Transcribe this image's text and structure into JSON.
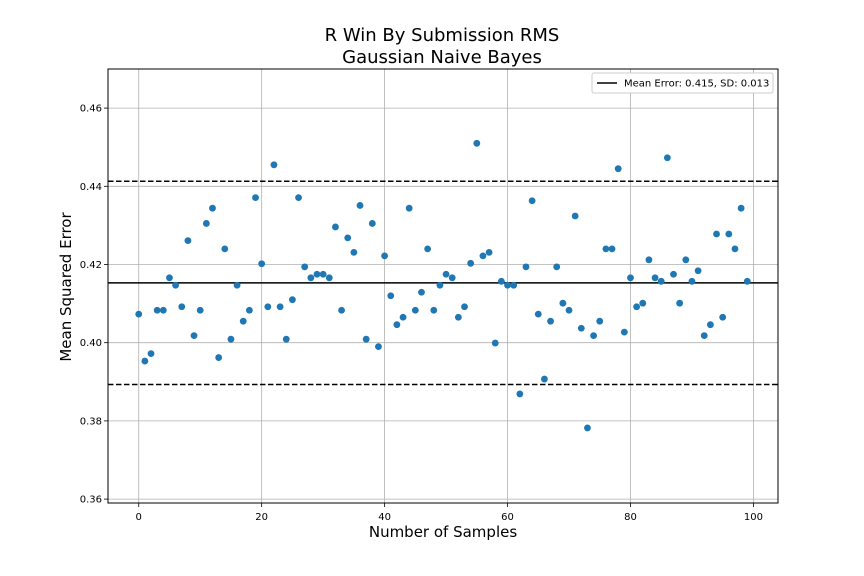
{
  "chart_data": {
    "type": "scatter",
    "title": [
      "R Win By Submission RMS",
      "Gaussian Naive Bayes"
    ],
    "xlabel": "Number of Samples",
    "ylabel": "Mean Squared Error",
    "xlim": [
      -5,
      104
    ],
    "ylim": [
      0.359,
      0.47
    ],
    "xticks": [
      0,
      20,
      40,
      60,
      80,
      100
    ],
    "yticks": [
      0.36,
      0.38,
      0.4,
      0.42,
      0.44,
      0.46
    ],
    "ytick_labels": [
      "0.36",
      "0.38",
      "0.40",
      "0.42",
      "0.44",
      "0.46"
    ],
    "grid": true,
    "legend": {
      "position": "top-right",
      "entries": [
        "Mean Error: 0.415, SD: 0.013"
      ]
    },
    "mean": 0.4153,
    "upper_band": 0.4413,
    "lower_band": 0.3893,
    "colors": {
      "points": "#1f77b4",
      "mean_line": "#000000",
      "band_line": "#000000",
      "grid": "#b0b0b0"
    },
    "x": [
      0,
      1,
      2,
      3,
      4,
      5,
      6,
      7,
      8,
      9,
      10,
      11,
      12,
      13,
      14,
      15,
      16,
      17,
      18,
      19,
      20,
      21,
      22,
      23,
      24,
      25,
      26,
      27,
      28,
      29,
      30,
      31,
      32,
      33,
      34,
      35,
      36,
      37,
      38,
      39,
      40,
      41,
      42,
      43,
      44,
      45,
      46,
      47,
      48,
      49,
      50,
      51,
      52,
      53,
      54,
      55,
      56,
      57,
      58,
      59,
      60,
      61,
      62,
      63,
      64,
      65,
      66,
      67,
      68,
      69,
      70,
      71,
      72,
      73,
      74,
      75,
      76,
      77,
      78,
      79,
      80,
      81,
      82,
      83,
      84,
      85,
      86,
      87,
      88,
      89,
      90,
      91,
      92,
      93,
      94,
      95,
      96,
      97,
      98,
      99
    ],
    "y": [
      0.4073,
      0.3953,
      0.3972,
      0.4083,
      0.4083,
      0.4166,
      0.4147,
      0.4092,
      0.4261,
      0.4018,
      0.4083,
      0.4305,
      0.4344,
      0.3962,
      0.424,
      0.4009,
      0.4147,
      0.4055,
      0.4083,
      0.4371,
      0.4202,
      0.4092,
      0.4455,
      0.4092,
      0.4009,
      0.411,
      0.4371,
      0.4194,
      0.4166,
      0.4175,
      0.4175,
      0.4166,
      0.4296,
      0.4083,
      0.4268,
      0.4231,
      0.4351,
      0.4009,
      0.4305,
      0.399,
      0.4222,
      0.412,
      0.4046,
      0.4065,
      0.4344,
      0.4083,
      0.4129,
      0.424,
      0.4083,
      0.4147,
      0.4175,
      0.4166,
      0.4065,
      0.4092,
      0.4203,
      0.451,
      0.4222,
      0.4231,
      0.3999,
      0.4157,
      0.4147,
      0.4147,
      0.3869,
      0.4194,
      0.4363,
      0.4073,
      0.3907,
      0.4055,
      0.4194,
      0.4101,
      0.4083,
      0.4324,
      0.4037,
      0.3782,
      0.4018,
      0.4055,
      0.424,
      0.424,
      0.4445,
      0.4027,
      0.4166,
      0.4092,
      0.4101,
      0.4212,
      0.4166,
      0.4157,
      0.4473,
      0.4175,
      0.4101,
      0.4212,
      0.4157,
      0.4184,
      0.4018,
      0.4046,
      0.4278,
      0.4065,
      0.4278,
      0.424,
      0.4344,
      0.4157
    ]
  }
}
